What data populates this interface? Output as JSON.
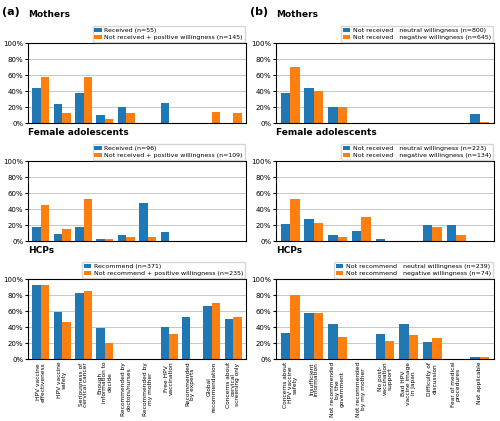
{
  "chart_data": [
    {
      "type": "bar",
      "title": "Mothers",
      "categories": [
        "HPV vaccine\neffectiveness",
        "HPV vaccine\nsafety",
        "Seriousness of\ncervical cancer",
        "Enough\ninformation to\ndecide",
        "Recommended by\ndoctors/nurses",
        "Recommended by\nmy mother",
        "Free HPV\nvaccination",
        "Recommended\nby experts",
        "Global\nrecommendation",
        "Concerns about\ncervical\nscreening only"
      ],
      "series": [
        {
          "name": "Received (n=55)",
          "values": [
            44,
            24,
            37,
            10,
            20,
            0,
            25,
            0,
            0,
            0
          ]
        },
        {
          "name": "Not received + positive willingness (n=145)",
          "values": [
            58,
            13,
            58,
            5,
            12,
            0,
            0,
            0,
            14,
            12
          ]
        }
      ],
      "ylim": [
        0,
        100
      ],
      "yticks": [
        {
          "value": 0,
          "label": "0%"
        },
        {
          "value": 20,
          "label": "20%"
        },
        {
          "value": 40,
          "label": "40%"
        },
        {
          "value": 60,
          "label": "60%"
        },
        {
          "value": 80,
          "label": "80%"
        },
        {
          "value": 100,
          "label": "100%"
        }
      ],
      "grid": true,
      "legend": "upper right",
      "tick_labels": "y",
      "annotations": [
        "(a)"
      ]
    },
    {
      "type": "bar",
      "title": "Female adolescents",
      "categories": [
        "HPV vaccine\neffectiveness",
        "HPV vaccine\nsafety",
        "Seriousness of\ncervical cancer",
        "Enough\ninformation to\ndecide",
        "Recommended by\ndoctors/nurses",
        "Recommended by\nmy mother",
        "Free HPV\nvaccination",
        "Recommended\nby experts",
        "Global\nrecommendation",
        "Concerns about\ncervical\nscreening only"
      ],
      "series": [
        {
          "name": "Received (n=96)",
          "values": [
            18,
            9,
            18,
            2,
            7,
            48,
            11,
            0,
            0,
            0
          ]
        },
        {
          "name": "Not received + positive willingness (n=109)",
          "values": [
            45,
            15,
            53,
            2,
            5,
            5,
            0,
            0,
            0,
            0
          ]
        }
      ],
      "ylim": [
        0,
        100
      ],
      "yticks": [
        {
          "value": 0,
          "label": "0%"
        },
        {
          "value": 20,
          "label": "20%"
        },
        {
          "value": 40,
          "label": "40%"
        },
        {
          "value": 60,
          "label": "60%"
        },
        {
          "value": 80,
          "label": "80%"
        },
        {
          "value": 100,
          "label": "100%"
        }
      ],
      "grid": true,
      "legend": "upper right",
      "tick_labels": "y"
    },
    {
      "type": "bar",
      "title": "HCPs",
      "categories": [
        "HPV vaccine\neffectiveness",
        "HPV vaccine\nsafety",
        "Seriousness of\ncervical cancer",
        "Enough\ninformation to\ndecide",
        "Recommended by\ndoctors/nurses",
        "Recommended by\nmy mother",
        "Free HPV\nvaccination",
        "Recommended\nby experts",
        "Global\nrecommendation",
        "Concerns about\ncervical\nscreening only"
      ],
      "series": [
        {
          "name": "Recommend (n=371)",
          "values": [
            93,
            59,
            82,
            39,
            0,
            0,
            40,
            52,
            66,
            50
          ]
        },
        {
          "name": "Not recommend + positive willingness (n=235)",
          "values": [
            92,
            46,
            85,
            20,
            0,
            0,
            31,
            0,
            70,
            53
          ]
        }
      ],
      "ylim": [
        0,
        100
      ],
      "yticks": [
        {
          "value": 0,
          "label": "0%"
        },
        {
          "value": 20,
          "label": "20%"
        },
        {
          "value": 40,
          "label": "40%"
        },
        {
          "value": 60,
          "label": "60%"
        },
        {
          "value": 80,
          "label": "80%"
        },
        {
          "value": 100,
          "label": "100%"
        }
      ],
      "grid": true,
      "legend": "upper right"
    },
    {
      "type": "bar",
      "title": "Mothers",
      "categories": [
        "Concerns about\nHPV vaccine\nsafety",
        "Insufficient\ninformation",
        "Not recommended\nby the\ngovernment",
        "Not recommended\nby my mother",
        "No post-\nvaccination\nsupport",
        "Bad HPV\nvaccine image\nin Japan",
        "Difficulty of\ndiscussion",
        "Fear of medical\nprocedures",
        "Not applicable"
      ],
      "series": [
        {
          "name": "Not received   neutral willingness (n=800)",
          "values": [
            38,
            44,
            20,
            0,
            0,
            0,
            0,
            0,
            11
          ]
        },
        {
          "name": "Not received   negative willingness (n=645)",
          "values": [
            70,
            40,
            20,
            0,
            0,
            0,
            0,
            0,
            1
          ]
        }
      ],
      "ylim": [
        0,
        100
      ],
      "yticks": [
        {
          "value": 0,
          "label": "0%"
        },
        {
          "value": 20,
          "label": "20%"
        },
        {
          "value": 40,
          "label": "40%"
        },
        {
          "value": 60,
          "label": "60%"
        },
        {
          "value": 80,
          "label": "80%"
        },
        {
          "value": 100,
          "label": "100%"
        }
      ],
      "grid": true,
      "legend": "upper right",
      "tick_labels": "y",
      "annotations": [
        "(b)"
      ]
    },
    {
      "type": "bar",
      "title": "Female adolescents",
      "categories": [
        "Concerns about\nHPV vaccine\nsafety",
        "Insufficient\ninformation",
        "Not recommended\nby the\ngovernment",
        "Not recommended\nby my mother",
        "No post-\nvaccination\nsupport",
        "Bad HPV\nvaccine image\nin Japan",
        "Difficulty of\ndiscussion",
        "Fear of medical\nprocedures",
        "Not applicable"
      ],
      "series": [
        {
          "name": "Not received   neutral willingness (n=223)",
          "values": [
            21,
            27,
            7,
            13,
            3,
            0,
            20,
            20,
            0
          ]
        },
        {
          "name": "Not received   negative willingness (n=134)",
          "values": [
            52,
            23,
            5,
            30,
            0,
            0,
            18,
            8,
            0
          ]
        }
      ],
      "ylim": [
        0,
        100
      ],
      "yticks": [
        {
          "value": 0,
          "label": "0%"
        },
        {
          "value": 20,
          "label": "20%"
        },
        {
          "value": 40,
          "label": "40%"
        },
        {
          "value": 60,
          "label": "60%"
        },
        {
          "value": 80,
          "label": "80%"
        },
        {
          "value": 100,
          "label": "100%"
        }
      ],
      "grid": true,
      "legend": "upper right",
      "tick_labels": "y"
    },
    {
      "type": "bar",
      "title": "HCPs",
      "categories": [
        "Concerns about\nHPV vaccine\nsafety",
        "Insufficient\ninformation",
        "Not recommended\nby the\ngovernment",
        "Not recommended\nby my mother",
        "No post-\nvaccination\nsupport",
        "Bad HPV\nvaccine image\nin Japan",
        "Difficulty of\ndiscussion",
        "Fear of medical\nprocedures",
        "Not applicable"
      ],
      "series": [
        {
          "name": "Not recommend   neutral willingness (n=239)",
          "values": [
            32,
            57,
            44,
            0,
            31,
            44,
            21,
            0,
            2
          ]
        },
        {
          "name": "Not recommend   negative willingness (n=74)",
          "values": [
            80,
            57,
            27,
            0,
            22,
            30,
            26,
            0,
            2
          ]
        }
      ],
      "ylim": [
        0,
        100
      ],
      "yticks": [
        {
          "value": 0,
          "label": "0%"
        },
        {
          "value": 20,
          "label": "20%"
        },
        {
          "value": 40,
          "label": "40%"
        },
        {
          "value": 60,
          "label": "60%"
        },
        {
          "value": 80,
          "label": "80%"
        },
        {
          "value": 100,
          "label": "100%"
        }
      ],
      "grid": true,
      "legend": "upper right"
    }
  ]
}
